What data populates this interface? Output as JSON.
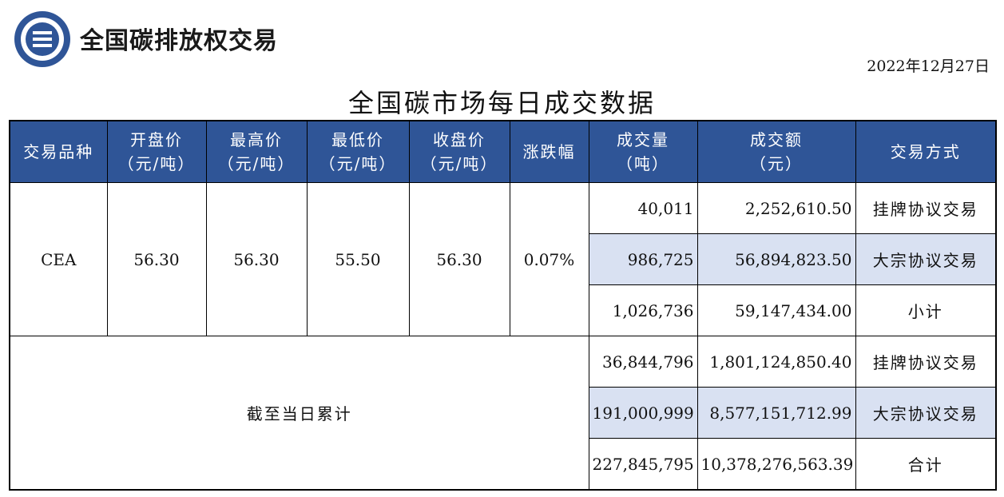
{
  "header": {
    "brand": "全国碳排放权交易",
    "date": "2022年12月27日",
    "title": "全国碳市场每日成交数据",
    "brand_color": "#2f5597"
  },
  "chart_data": {
    "type": "table",
    "title": "全国碳市场每日成交数据",
    "columns": [
      {
        "line1": "交易品种",
        "line2": ""
      },
      {
        "line1": "开盘价",
        "line2": "（元/吨）"
      },
      {
        "line1": "最高价",
        "line2": "（元/吨）"
      },
      {
        "line1": "最低价",
        "line2": "（元/吨）"
      },
      {
        "line1": "收盘价",
        "line2": "（元/吨）"
      },
      {
        "line1": "涨跌幅",
        "line2": ""
      },
      {
        "line1": "成交量",
        "line2": "（吨）"
      },
      {
        "line1": "成交额",
        "line2": "（元）"
      },
      {
        "line1": "交易方式",
        "line2": ""
      }
    ],
    "daily": {
      "product": "CEA",
      "open": "56.30",
      "high": "56.30",
      "low": "55.50",
      "close": "56.30",
      "change": "0.07%",
      "rows": [
        {
          "volume": "40,011",
          "amount": "2,252,610.50",
          "method": "挂牌协议交易"
        },
        {
          "volume": "986,725",
          "amount": "56,894,823.50",
          "method": "大宗协议交易"
        },
        {
          "volume": "1,026,736",
          "amount": "59,147,434.00",
          "method": "小计"
        }
      ]
    },
    "cumulative": {
      "label": "截至当日累计",
      "rows": [
        {
          "volume": "36,844,796",
          "amount": "1,801,124,850.40",
          "method": "挂牌协议交易"
        },
        {
          "volume": "191,000,999",
          "amount": "8,577,151,712.99",
          "method": "大宗协议交易"
        },
        {
          "volume": "227,845,795",
          "amount": "10,378,276,563.39",
          "method": "合计"
        }
      ]
    }
  }
}
